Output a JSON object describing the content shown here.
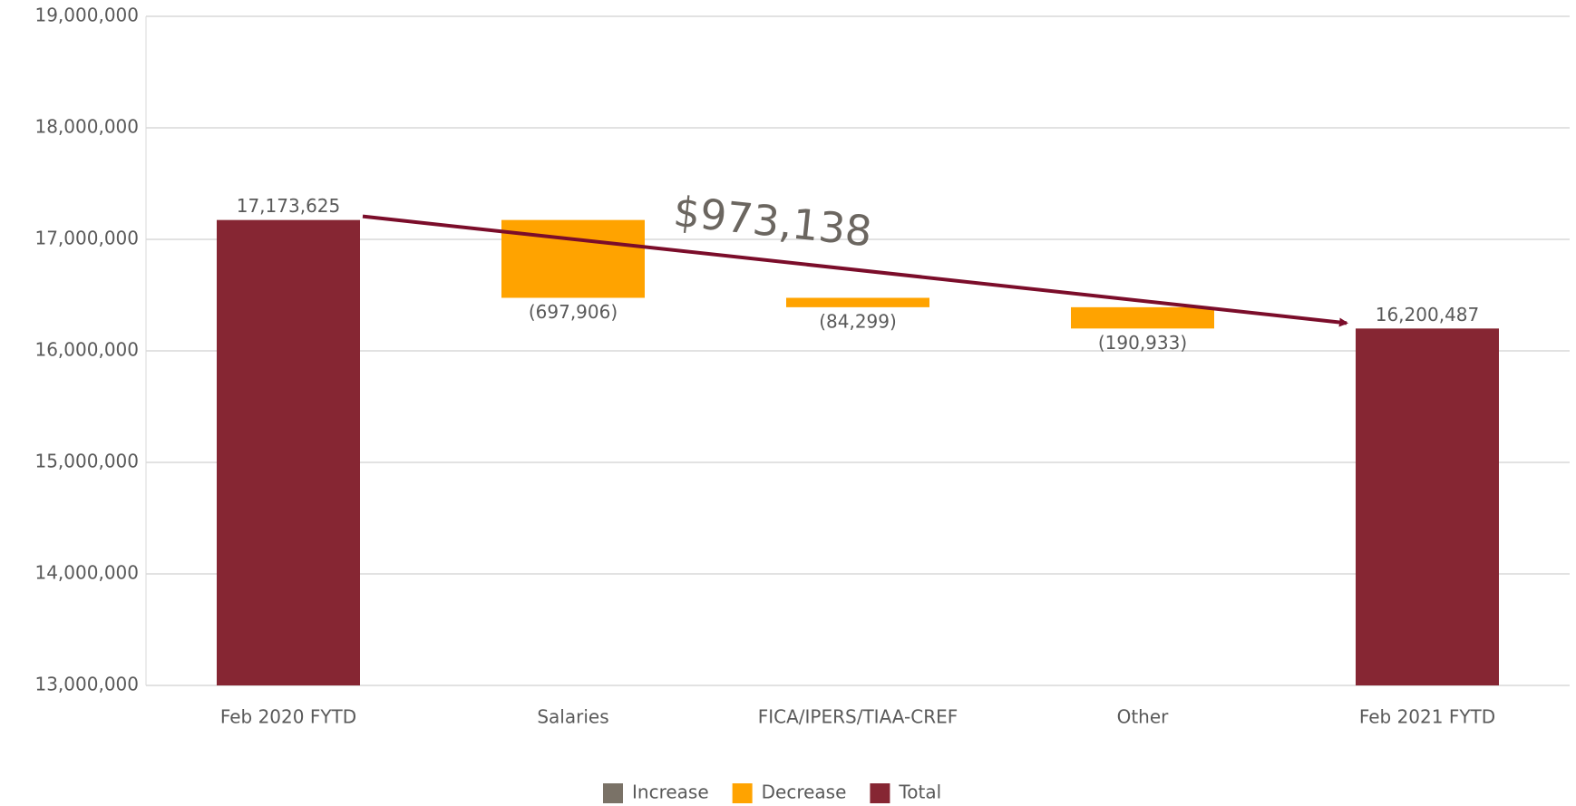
{
  "chart_data": {
    "type": "waterfall",
    "categories": [
      "Feb 2020 FYTD",
      "Salaries",
      "FICA/IPERS/TIAA-CREF",
      "Other",
      "Feb 2021 FYTD"
    ],
    "values": [
      17173625,
      -697906,
      -84299,
      -190933,
      16200487
    ],
    "value_labels": [
      "17,173,625",
      "(697,906)",
      "(84,299)",
      "(190,933)",
      "16,200,487"
    ],
    "kinds": [
      "total",
      "decrease",
      "decrease",
      "decrease",
      "total"
    ],
    "legend": [
      {
        "name": "Increase",
        "color": "#7a7267"
      },
      {
        "name": "Decrease",
        "color": "#ffa300"
      },
      {
        "name": "Total",
        "color": "#862633"
      }
    ],
    "annotation": "$973,138",
    "ylim": [
      13000000,
      19000000
    ],
    "yticks": [
      {
        "value": 13000000,
        "label": "13,000,000"
      },
      {
        "value": 14000000,
        "label": "14,000,000"
      },
      {
        "value": 15000000,
        "label": "15,000,000"
      },
      {
        "value": 16000000,
        "label": "16,000,000"
      },
      {
        "value": 17000000,
        "label": "17,000,000"
      },
      {
        "value": 18000000,
        "label": "18,000,000"
      },
      {
        "value": 19000000,
        "label": "19,000,000"
      }
    ],
    "grid": true
  }
}
